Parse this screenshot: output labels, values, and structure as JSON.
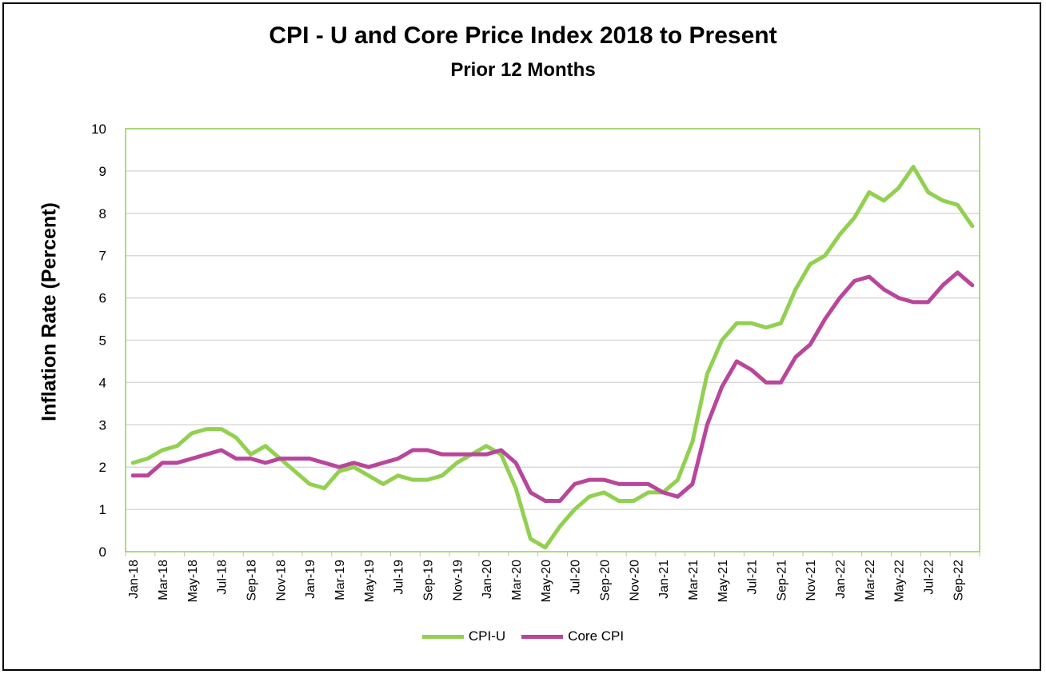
{
  "chart_data": {
    "type": "line",
    "title": "CPI - U and Core Price Index 2018 to Present",
    "subtitle": "Prior 12 Months",
    "xlabel": "",
    "ylabel": "Inflation Rate (Percent)",
    "ylim": [
      0,
      10
    ],
    "yticks": [
      "0",
      "1",
      "2",
      "3",
      "4",
      "5",
      "6",
      "7",
      "8",
      "9",
      "10"
    ],
    "grid": true,
    "legend": "bottom",
    "x": [
      "Jan-18",
      "Feb-18",
      "Mar-18",
      "Apr-18",
      "May-18",
      "Jun-18",
      "Jul-18",
      "Aug-18",
      "Sep-18",
      "Oct-18",
      "Nov-18",
      "Dec-18",
      "Jan-19",
      "Feb-19",
      "Mar-19",
      "Apr-19",
      "May-19",
      "Jun-19",
      "Jul-19",
      "Aug-19",
      "Sep-19",
      "Oct-19",
      "Nov-19",
      "Dec-19",
      "Jan-20",
      "Feb-20",
      "Mar-20",
      "Apr-20",
      "May-20",
      "Jun-20",
      "Jul-20",
      "Aug-20",
      "Sep-20",
      "Oct-20",
      "Nov-20",
      "Dec-20",
      "Jan-21",
      "Feb-21",
      "Mar-21",
      "Apr-21",
      "May-21",
      "Jun-21",
      "Jul-21",
      "Aug-21",
      "Sep-21",
      "Oct-21",
      "Nov-21",
      "Dec-21",
      "Jan-22",
      "Feb-22",
      "Mar-22",
      "Apr-22",
      "May-22",
      "Jun-22",
      "Jul-22",
      "Aug-22",
      "Sep-22",
      "Oct-22"
    ],
    "series": [
      {
        "name": "CPI-U",
        "color": "#92D050",
        "values": [
          2.1,
          2.2,
          2.4,
          2.5,
          2.8,
          2.9,
          2.9,
          2.7,
          2.3,
          2.5,
          2.2,
          1.9,
          1.6,
          1.5,
          1.9,
          2.0,
          1.8,
          1.6,
          1.8,
          1.7,
          1.7,
          1.8,
          2.1,
          2.3,
          2.5,
          2.3,
          1.5,
          0.3,
          0.1,
          0.6,
          1.0,
          1.3,
          1.4,
          1.2,
          1.2,
          1.4,
          1.4,
          1.7,
          2.6,
          4.2,
          5.0,
          5.4,
          5.4,
          5.3,
          5.4,
          6.2,
          6.8,
          7.0,
          7.5,
          7.9,
          8.5,
          8.3,
          8.6,
          9.1,
          8.5,
          8.3,
          8.2,
          7.7
        ]
      },
      {
        "name": "Core CPI",
        "color": "#B8469B",
        "values": [
          1.8,
          1.8,
          2.1,
          2.1,
          2.2,
          2.3,
          2.4,
          2.2,
          2.2,
          2.1,
          2.2,
          2.2,
          2.2,
          2.1,
          2.0,
          2.1,
          2.0,
          2.1,
          2.2,
          2.4,
          2.4,
          2.3,
          2.3,
          2.3,
          2.3,
          2.4,
          2.1,
          1.4,
          1.2,
          1.2,
          1.6,
          1.7,
          1.7,
          1.6,
          1.6,
          1.6,
          1.4,
          1.3,
          1.6,
          3.0,
          3.9,
          4.5,
          4.3,
          4.0,
          4.0,
          4.6,
          4.9,
          5.5,
          6.0,
          6.4,
          6.5,
          6.2,
          6.0,
          5.9,
          5.9,
          6.3,
          6.6,
          6.3
        ]
      }
    ]
  }
}
